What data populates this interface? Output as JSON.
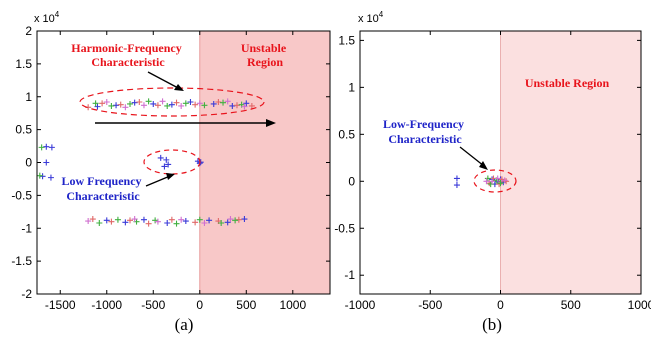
{
  "chart_data": [
    {
      "type": "scatter",
      "panel_label": "(a)",
      "exponent_base": "x 10",
      "exponent_power": "4",
      "xlim": [
        -1750,
        1400
      ],
      "ylim": [
        -20000,
        20000
      ],
      "xticks": [
        -1500,
        -1000,
        -500,
        0,
        500,
        1000
      ],
      "xtick_labels": [
        "-1500",
        "-1000",
        "-500",
        "0",
        "500",
        "1000"
      ],
      "yticks": [
        -20000,
        -15000,
        -10000,
        -5000,
        0,
        5000,
        10000,
        15000,
        20000
      ],
      "ytick_labels": [
        "-2",
        "-1.5",
        "-1",
        "-0.5",
        "0",
        "0.5",
        "1",
        "1.5",
        "2"
      ],
      "marker": "+",
      "region": {
        "label_lines": [
          "Unstable",
          "Region"
        ],
        "x_from": 0,
        "color": "#f8c8c8"
      },
      "annotations": [
        {
          "lines": [
            "Harmonic-Frequency",
            "Characteristic"
          ],
          "color": "#e8141c"
        },
        {
          "lines": [
            "Low Frequency",
            "Characteristic"
          ],
          "color": "#1f24c8"
        }
      ],
      "series": [
        {
          "color": "#3a3ad8",
          "points": [
            [
              -1650,
              2400
            ],
            [
              -1590,
              2300
            ],
            [
              -1690,
              -2100
            ],
            [
              -1600,
              -2300
            ],
            [
              -1650,
              0
            ],
            [
              -420,
              700
            ],
            [
              -380,
              -600
            ],
            [
              -360,
              400
            ],
            [
              -340,
              -300
            ],
            [
              -20,
              200
            ],
            [
              0,
              -100
            ],
            [
              10,
              50
            ],
            [
              -1100,
              8500
            ],
            [
              -900,
              8700
            ],
            [
              -700,
              9100
            ],
            [
              -500,
              8900
            ],
            [
              -300,
              8800
            ],
            [
              -100,
              9200
            ],
            [
              150,
              8900
            ],
            [
              350,
              8600
            ],
            [
              500,
              9000
            ],
            [
              -1000,
              -8800
            ],
            [
              -800,
              -9100
            ],
            [
              -600,
              -8700
            ],
            [
              -350,
              -9200
            ],
            [
              -150,
              -8900
            ],
            [
              100,
              -8800
            ],
            [
              300,
              -9100
            ],
            [
              480,
              -8600
            ]
          ]
        },
        {
          "color": "#e06868",
          "points": [
            [
              -1200,
              8400
            ],
            [
              -1050,
              9000
            ],
            [
              -850,
              8800
            ],
            [
              -650,
              9200
            ],
            [
              -450,
              8700
            ],
            [
              -250,
              9100
            ],
            [
              -50,
              8800
            ],
            [
              200,
              9200
            ],
            [
              400,
              8700
            ],
            [
              560,
              8600
            ],
            [
              -1150,
              -8600
            ],
            [
              -950,
              -9000
            ],
            [
              -750,
              -8800
            ],
            [
              -550,
              -9300
            ],
            [
              -300,
              -8700
            ],
            [
              -50,
              -9100
            ],
            [
              200,
              -8900
            ],
            [
              420,
              -8700
            ]
          ]
        },
        {
          "color": "#40b040",
          "points": [
            [
              -1700,
              2300
            ],
            [
              -1720,
              -2000
            ],
            [
              -1120,
              9000
            ],
            [
              -950,
              8600
            ],
            [
              -750,
              8900
            ],
            [
              -550,
              9300
            ],
            [
              -350,
              8600
            ],
            [
              -150,
              9000
            ],
            [
              50,
              8700
            ],
            [
              250,
              9100
            ],
            [
              450,
              8800
            ],
            [
              -1080,
              -9200
            ],
            [
              -880,
              -8700
            ],
            [
              -680,
              -9000
            ],
            [
              -480,
              -8800
            ],
            [
              -250,
              -9300
            ],
            [
              0,
              -8700
            ],
            [
              230,
              -9200
            ],
            [
              380,
              -8800
            ]
          ]
        },
        {
          "color": "#d070d0",
          "points": [
            [
              -1000,
              9200
            ],
            [
              -800,
              8400
            ],
            [
              -600,
              8700
            ],
            [
              -400,
              9300
            ],
            [
              -200,
              8600
            ],
            [
              0,
              9000
            ],
            [
              300,
              9300
            ],
            [
              480,
              8500
            ],
            [
              -1200,
              -8900
            ],
            [
              -700,
              -8600
            ],
            [
              -450,
              -9000
            ],
            [
              -200,
              -8700
            ],
            [
              50,
              -9200
            ],
            [
              330,
              -8600
            ]
          ]
        }
      ]
    },
    {
      "type": "scatter",
      "panel_label": "(b)",
      "exponent_base": "x 10",
      "exponent_power": "4",
      "xlim": [
        -1000,
        1000
      ],
      "ylim": [
        -12000,
        16000
      ],
      "xticks": [
        -1000,
        -500,
        0,
        500,
        1000
      ],
      "xtick_labels": [
        "-1000",
        "-500",
        "0",
        "500",
        "1000"
      ],
      "yticks": [
        -10000,
        -5000,
        0,
        5000,
        10000,
        15000
      ],
      "ytick_labels": [
        "-1",
        "-0.5",
        "0",
        "0.5",
        "1",
        "1.5"
      ],
      "marker": "+",
      "region": {
        "label_lines": [
          "Unstable Region"
        ],
        "x_from": 0,
        "color": "#fbe0e0"
      },
      "annotations": [
        {
          "lines": [
            "Low-Frequency",
            "Characteristic"
          ],
          "color": "#1f24c8"
        }
      ],
      "series": [
        {
          "color": "#3a3ad8",
          "points": [
            [
              -310,
              300
            ],
            [
              -310,
              -400
            ],
            [
              -60,
              200
            ],
            [
              -40,
              -300
            ],
            [
              -20,
              0
            ],
            [
              0,
              200
            ],
            [
              20,
              -100
            ]
          ]
        },
        {
          "color": "#e06868",
          "points": [
            [
              -80,
              -200
            ],
            [
              -50,
              300
            ],
            [
              -10,
              -300
            ],
            [
              10,
              200
            ],
            [
              40,
              0
            ]
          ]
        },
        {
          "color": "#40b040",
          "points": [
            [
              -90,
              300
            ],
            [
              -70,
              -300
            ],
            [
              -30,
              100
            ],
            [
              0,
              -200
            ]
          ]
        },
        {
          "color": "#d070d0",
          "points": [
            [
              -100,
              0
            ],
            [
              -60,
              0
            ],
            [
              -20,
              300
            ],
            [
              30,
              100
            ]
          ]
        }
      ]
    }
  ]
}
